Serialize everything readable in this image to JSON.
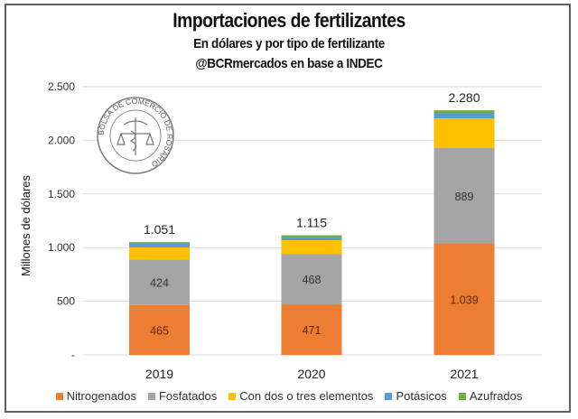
{
  "chart_data": {
    "type": "bar",
    "stacked": true,
    "title": "Importaciones de fertilizantes",
    "subtitle": "En dólares y por tipo de fertilizante",
    "source": "@BCRmercados en base a INDEC",
    "xlabel": "",
    "ylabel": "Millones de dólares",
    "ylim": [
      0,
      2500
    ],
    "yticks": [
      0,
      500,
      1000,
      1500,
      2000,
      2500
    ],
    "ytick_labels": [
      "-",
      "500",
      "1.000",
      "1.500",
      "2.000",
      "2.500"
    ],
    "grid": true,
    "legend_position": "bottom",
    "categories": [
      "2019",
      "2020",
      "2021"
    ],
    "series": [
      {
        "name": "Nitrogenados",
        "color": "#ED7D31",
        "values": [
          465,
          471,
          1039
        ],
        "labels": [
          "465",
          "471",
          "1.039"
        ],
        "label_color": "#5a2a0a"
      },
      {
        "name": "Fosfatados",
        "color": "#A5A5A5",
        "values": [
          424,
          468,
          889
        ],
        "labels": [
          "424",
          "468",
          "889"
        ],
        "label_color": "#333333"
      },
      {
        "name": "Con dos o tres elementos",
        "color": "#FFC000",
        "values": [
          113,
          130,
          277
        ],
        "labels": null
      },
      {
        "name": "Potásicos",
        "color": "#5B9BD5",
        "values": [
          42,
          25,
          51
        ],
        "labels": null
      },
      {
        "name": "Azufrados",
        "color": "#70AD47",
        "values": [
          7,
          21,
          24
        ],
        "labels": null
      }
    ],
    "totals": [
      1051,
      1115,
      2280
    ],
    "total_labels": [
      "1.051",
      "1.115",
      "2.280"
    ]
  },
  "logo": {
    "text": "BOLSA DE COMERCIO DE ROSARIO"
  }
}
